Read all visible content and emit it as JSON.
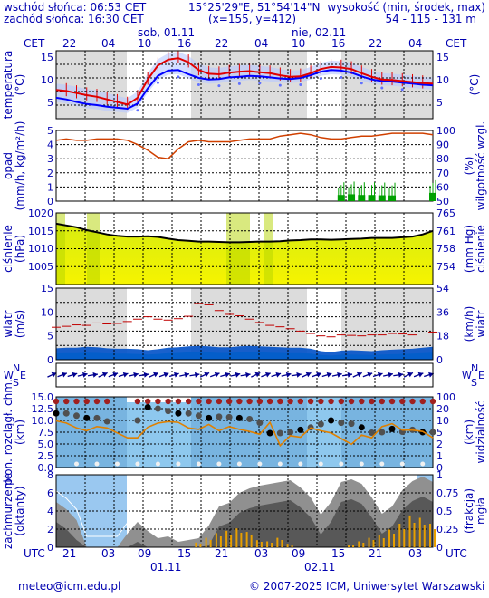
{
  "header": {
    "sunrise": "wschód słońca: 06:53 CET",
    "sunset": "zachód słońca: 16:30 CET",
    "coords": "15°25'29\"E, 51°54'14\"N",
    "grid": "(x=155,  y=412)",
    "altitude_label": "wysokość (min, środek, max)",
    "altitude_values": "54 - 115 - 131 m"
  },
  "top_axis": {
    "tz_left": "CET",
    "tz_right": "CET",
    "days": [
      "sob, 01.11",
      "nie, 02.11"
    ],
    "hours": [
      "22",
      "04",
      "10",
      "16",
      "22",
      "04",
      "10",
      "16",
      "22",
      "04"
    ]
  },
  "bottom_axis": {
    "tz_left": "UTC",
    "tz_right": "UTC",
    "hours": [
      "21",
      "03",
      "09",
      "15",
      "21",
      "03",
      "09",
      "15",
      "21",
      "03"
    ],
    "dates": [
      "01.11",
      "02.11"
    ]
  },
  "footer": {
    "email": "meteo@icm.edu.pl",
    "copyright": "© 2007-2025 ICM, Uniwersytet Warszawski"
  },
  "colors": {
    "text": "#0000b0",
    "night_shade": "#dcdcdc",
    "temp": "#e00000",
    "dew": "#0000ff",
    "humidity": "#d04000",
    "precip": "#00a000",
    "wind": "#0050c8",
    "gust": "#c00000",
    "cloud_base": "#e08000",
    "pressure_fill": "#e8f000"
  },
  "panels": [
    {
      "id": "temperature",
      "left_label": "temperatura",
      "left_unit": "(°C)",
      "right_label": "(°C)",
      "right_unit": "",
      "left_ticks": [
        "15",
        "10",
        "5"
      ],
      "right_ticks": [
        "15",
        "10",
        "5"
      ]
    },
    {
      "id": "precip",
      "left_label": "opad",
      "left_unit": "(mm/h, kg/m²/h)",
      "right_label": "wilgotność wzgl.",
      "right_unit": "(%)",
      "left_ticks": [
        "5",
        "4",
        "3",
        "2",
        "1",
        "0"
      ],
      "right_ticks": [
        "100",
        "90",
        "80",
        "70",
        "60",
        "50"
      ]
    },
    {
      "id": "pressure",
      "left_label": "ciśnienie",
      "left_unit": "(hPa)",
      "right_label": "ciśnienie",
      "right_unit": "(mm Hg)",
      "left_ticks": [
        "1020",
        "1015",
        "1010",
        "1005"
      ],
      "right_ticks": [
        "765",
        "761",
        "758",
        "754"
      ]
    },
    {
      "id": "wind",
      "left_label": "wiatr",
      "left_unit": "(m/s)",
      "right_label": "wiatr",
      "right_unit": "(km/h)",
      "left_ticks": [
        "15",
        "10",
        "5",
        "0"
      ],
      "right_ticks": [
        "54",
        "36",
        "18",
        "0"
      ]
    },
    {
      "id": "direction",
      "compass_left": [
        "N",
        "W",
        "E",
        "S"
      ],
      "compass_right": [
        "N",
        "W",
        "E",
        "S"
      ]
    },
    {
      "id": "visibility",
      "left_label": "pion. rozciągł. chm.",
      "left_unit": "(km)",
      "right_label": "widzialność",
      "right_unit": "(km)",
      "left_ticks": [
        "15.0",
        "12.5",
        "10.0",
        "7.5",
        "5.0",
        "2.5",
        "0.0"
      ],
      "right_ticks": [
        "100",
        "20",
        "10",
        "5",
        "2",
        "1",
        "0"
      ]
    },
    {
      "id": "clouds",
      "left_label": "zachmurzenie",
      "left_unit": "(oktanty)",
      "right_label": "mgła",
      "right_unit": "(frakcja)",
      "left_ticks": [
        "8",
        "6",
        "4",
        "2",
        "0"
      ],
      "right_ticks": [
        "1",
        "0.75",
        "0.5",
        "0.25",
        "0"
      ]
    }
  ],
  "chart_data": [
    {
      "type": "line",
      "panel": "temperature",
      "ylim": [
        2,
        15
      ],
      "series": [
        {
          "values": [
            7.5,
            7.3,
            6.9,
            6.5,
            6.2,
            5.7,
            5.2,
            4.7,
            6.0,
            9.5,
            12.2,
            13.3,
            13.6,
            12.8,
            11.3,
            10.6,
            10.5,
            10.8,
            11.0,
            11.1,
            10.9,
            10.7,
            10.3,
            10.0,
            10.1,
            10.7,
            11.5,
            11.9,
            11.8,
            11.5,
            10.7,
            10.0,
            9.5,
            9.4,
            9.2,
            9.0,
            8.8,
            8.7
          ]
        },
        {
          "values": [
            6.0,
            5.7,
            5.2,
            4.8,
            4.6,
            4.3,
            4.1,
            3.9,
            4.9,
            7.8,
            10.2,
            11.2,
            11.3,
            10.5,
            9.8,
            9.5,
            9.6,
            9.9,
            10.0,
            10.2,
            10.1,
            9.9,
            9.7,
            9.6,
            9.8,
            10.3,
            11.0,
            11.3,
            11.2,
            10.8,
            10.1,
            9.5,
            9.2,
            9.1,
            8.9,
            8.7,
            8.5,
            8.4
          ]
        }
      ]
    },
    {
      "type": "bar",
      "panel": "precip",
      "ylim": [
        0,
        5
      ],
      "values": [
        0,
        0,
        0,
        0,
        0,
        0,
        0,
        0,
        0,
        0,
        0,
        0,
        0,
        0,
        0,
        0,
        0,
        0,
        0,
        0,
        0,
        0,
        0,
        0,
        0,
        0,
        0,
        0,
        0.05,
        0.1,
        0.05,
        0.05,
        0.03,
        0.02,
        0,
        0,
        0,
        0.2
      ]
    },
    {
      "type": "line",
      "panel": "humidity",
      "ylim": [
        50,
        100
      ],
      "values": [
        93,
        94,
        93,
        93,
        94,
        94,
        94,
        93,
        90,
        86,
        81,
        80,
        87,
        92,
        93,
        92,
        92,
        92,
        93,
        94,
        94,
        94,
        96,
        97,
        98,
        97,
        95,
        94,
        94,
        95,
        96,
        96,
        97,
        98,
        98,
        98,
        98,
        97
      ]
    },
    {
      "type": "area",
      "panel": "pressure",
      "ylim": [
        1000,
        1020
      ],
      "values": [
        1017.0,
        1016.5,
        1016.0,
        1015.2,
        1014.6,
        1014.0,
        1013.6,
        1013.4,
        1013.4,
        1013.5,
        1013.3,
        1012.8,
        1012.4,
        1012.2,
        1012.0,
        1012.0,
        1011.9,
        1011.8,
        1011.8,
        1011.9,
        1012.0,
        1012.0,
        1012.1,
        1012.3,
        1012.4,
        1012.6,
        1012.6,
        1012.5,
        1012.6,
        1012.7,
        1012.8,
        1013.0,
        1013.0,
        1013.0,
        1013.2,
        1013.4,
        1014.0,
        1015.0
      ]
    },
    {
      "type": "area",
      "panel": "wind",
      "ylim": [
        0,
        15
      ],
      "series": [
        {
          "values": [
            2.4,
            2.5,
            2.5,
            2.7,
            2.6,
            2.4,
            2.3,
            2.3,
            2.2,
            2.0,
            2.2,
            2.5,
            2.6,
            2.8,
            2.9,
            2.8,
            2.6,
            2.6,
            2.8,
            2.9,
            2.8,
            2.7,
            2.6,
            2.5,
            2.5,
            2.3,
            1.8,
            1.6,
            1.9,
            2.0,
            1.9,
            1.8,
            2.0,
            2.1,
            2.2,
            2.3,
            2.5,
            2.7
          ]
        },
        {
          "values": [
            6.8,
            7.0,
            7.3,
            7.2,
            7.7,
            7.5,
            7.6,
            8.0,
            8.5,
            9.0,
            8.5,
            8.3,
            8.6,
            9.1,
            11.8,
            11.5,
            10.3,
            9.5,
            9.2,
            8.5,
            7.8,
            7.2,
            6.9,
            6.5,
            6.0,
            5.5,
            5.0,
            4.8,
            5.2,
            5.1,
            5.0,
            5.2,
            5.2,
            5.5,
            5.4,
            5.2,
            5.6,
            5.8
          ]
        }
      ]
    },
    {
      "type": "scatter",
      "panel": "visibility",
      "ylim": [
        0,
        15
      ],
      "series": [
        {
          "values": [
            11.5,
            11.5,
            11.0,
            10.5,
            10.5,
            9.8,
            null,
            null,
            10.0,
            12.8,
            12.5,
            12.0,
            11.5,
            11.5,
            11.0,
            10.5,
            10.8,
            10.7,
            10.5,
            10.3,
            9.5,
            7.3,
            7.3,
            7.5,
            8.0,
            8.5,
            9.2,
            10.0,
            9.5,
            9.3,
            8.5,
            7.4,
            7.5,
            8.2,
            7.6,
            8.0,
            7.5,
            7.5
          ]
        },
        {
          "values": [
            6.6,
            6.3,
            5.6,
            5.2,
            5.8,
            5.6,
            4.9,
            4.2,
            4.2,
            5.7,
            6.3,
            6.5,
            6.4,
            5.6,
            5.4,
            6.1,
            5.2,
            5.8,
            5.4,
            5.1,
            4.7,
            6.4,
            3.1,
            4.5,
            4.3,
            5.6,
            5.2,
            4.9,
            4.1,
            3.3,
            4.6,
            4.2,
            5.8,
            6.2,
            5.3,
            5.3,
            5.1,
            4.2
          ]
        }
      ]
    },
    {
      "type": "bar",
      "panel": "clouds",
      "ylim": [
        0,
        8
      ],
      "series": [
        {
          "values": [
            5.0,
            4.2,
            3.0,
            0,
            0,
            0,
            0,
            1.5,
            2.8,
            1.8,
            1.0,
            1.2,
            0.6,
            0.8,
            1.0,
            2.4,
            4.5,
            4.9,
            6.0,
            6.5,
            6.8,
            7.0,
            7.2,
            7.4,
            6.6,
            5.5,
            3.6,
            5.0,
            7.2,
            7.5,
            7.0,
            5.5,
            3.7,
            4.5,
            6.3,
            7.3,
            7.8,
            7.2
          ]
        },
        {
          "values": [
            0,
            0,
            0,
            0,
            0,
            0,
            0,
            0,
            0,
            0,
            0,
            0,
            0,
            0,
            0.4,
            0.8,
            1.2,
            1.4,
            1.6,
            1.3,
            0.6,
            0.5,
            0.8,
            0.3,
            0,
            0,
            0,
            0,
            0,
            0.2,
            0.5,
            0.8,
            1.0,
            1.5,
            2.0,
            2.7,
            2.5,
            2.0
          ]
        }
      ]
    }
  ]
}
